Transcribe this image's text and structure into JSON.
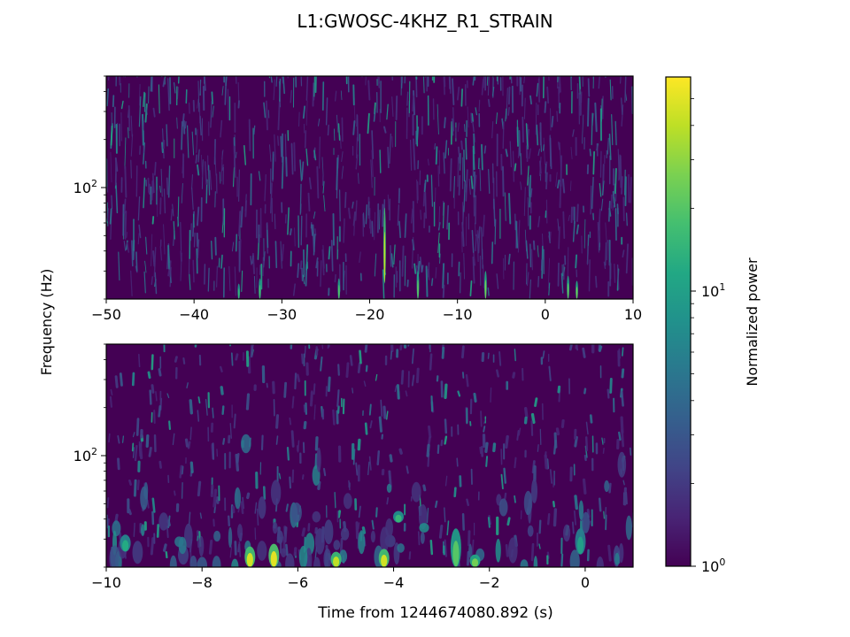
{
  "chart_data": {
    "type": "heatmap",
    "title": "L1:GWOSC-4KHZ_R1_STRAIN",
    "xlabel": "Time from 1244674080.892 (s)",
    "ylabel": "Frequency (Hz)",
    "yscale": "log",
    "colormap": "viridis",
    "colorbar": {
      "label": "Normalized power",
      "scale": "log",
      "range": [
        1,
        60
      ],
      "ticks": [
        {
          "value": 1,
          "label_base": "10",
          "label_exp": "0"
        },
        {
          "value": 10,
          "label_base": "10",
          "label_exp": "1"
        }
      ]
    },
    "panels": [
      {
        "name": "top",
        "xlim": [
          -50,
          10
        ],
        "ylim": [
          20,
          500
        ],
        "xticks": [
          -50,
          -40,
          -30,
          -20,
          -10,
          0,
          10
        ],
        "xtick_labels": [
          "−50",
          "−40",
          "−30",
          "−20",
          "−10",
          "0",
          "10"
        ],
        "yticks": [
          {
            "value": 100,
            "label_base": "10",
            "label_exp": "2"
          }
        ],
        "notable_features": [
          {
            "t": -18.3,
            "f_low": 25,
            "f_high": 75,
            "power": 40
          },
          {
            "t": -34.9,
            "f_low": 20,
            "f_high": 25,
            "power": 15
          },
          {
            "t": -32.5,
            "f_low": 20,
            "f_high": 27,
            "power": 18
          },
          {
            "t": -23.5,
            "f_low": 20,
            "f_high": 27,
            "power": 20
          },
          {
            "t": -14.5,
            "f_low": 20,
            "f_high": 30,
            "power": 22
          },
          {
            "t": -6.8,
            "f_low": 20,
            "f_high": 30,
            "power": 25
          },
          {
            "t": 2.6,
            "f_low": 20,
            "f_high": 28,
            "power": 22
          },
          {
            "t": 3.6,
            "f_low": 20,
            "f_high": 26,
            "power": 25
          }
        ]
      },
      {
        "name": "bottom",
        "xlim": [
          -10,
          1
        ],
        "ylim": [
          20,
          500
        ],
        "xticks": [
          -10,
          -8,
          -6,
          -4,
          -2,
          0
        ],
        "xtick_labels": [
          "−10",
          "−8",
          "−6",
          "−4",
          "−2",
          "0"
        ],
        "yticks": [
          {
            "value": 100,
            "label_base": "10",
            "label_exp": "2"
          }
        ],
        "notable_features": [
          {
            "t": -7.0,
            "f_low": 20,
            "f_high": 27,
            "power": 45
          },
          {
            "t": -6.5,
            "f_low": 20,
            "f_high": 28,
            "power": 50
          },
          {
            "t": -5.2,
            "f_low": 20,
            "f_high": 25,
            "power": 40
          },
          {
            "t": -4.2,
            "f_low": 20,
            "f_high": 26,
            "power": 45
          },
          {
            "t": -3.9,
            "f_low": 38,
            "f_high": 45,
            "power": 15
          },
          {
            "t": -2.7,
            "f_low": 20,
            "f_high": 35,
            "power": 20
          },
          {
            "t": -2.3,
            "f_low": 20,
            "f_high": 24,
            "power": 25
          },
          {
            "t": -9.6,
            "f_low": 25,
            "f_high": 32,
            "power": 12
          },
          {
            "t": -0.1,
            "f_low": 24,
            "f_high": 35,
            "power": 10
          }
        ]
      }
    ]
  }
}
